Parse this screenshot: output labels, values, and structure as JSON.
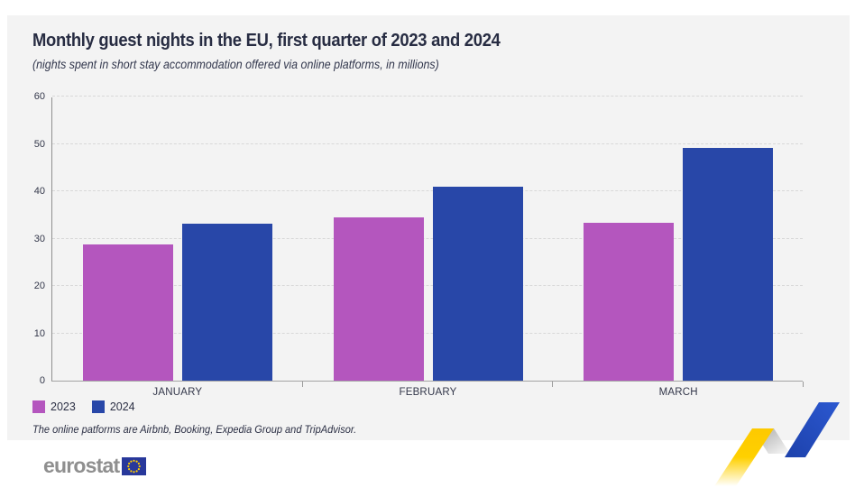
{
  "header": {
    "title": "Monthly guest nights in the EU, first quarter of 2023 and 2024",
    "subtitle": "(nights spent in short stay accommodation offered via online platforms, in millions)"
  },
  "chart_data": {
    "type": "bar",
    "categories": [
      "JANUARY",
      "FEBRUARY",
      "MARCH"
    ],
    "series": [
      {
        "name": "2023",
        "color": "#b456be",
        "values": [
          28.7,
          34.5,
          33.3
        ]
      },
      {
        "name": "2024",
        "color": "#2847a8",
        "values": [
          33.2,
          41.0,
          49.2
        ]
      }
    ],
    "title": "Monthly guest nights in the EU, first quarter of 2023 and 2024",
    "xlabel": "",
    "ylabel": "",
    "unit": "millions",
    "ylim": [
      0,
      60
    ],
    "y_ticks": [
      0,
      10,
      20,
      30,
      40,
      50,
      60
    ],
    "grid": "horizontal-dashed",
    "legend_position": "bottom-left"
  },
  "legend": {
    "items": [
      {
        "label": "2023",
        "color": "#b456be"
      },
      {
        "label": "2024",
        "color": "#2847a8"
      }
    ]
  },
  "footnote": "The online patforms are Airbnb, Booking, Expedia Group and TripAdvisor.",
  "footer": {
    "logo_text": "eurostat"
  },
  "colors": {
    "panel_bg": "#f3f3f3",
    "bar_2023": "#b456be",
    "bar_2024": "#2847a8",
    "ribbon_yellow": "#ffd000",
    "ribbon_blue": "#2552c7",
    "eu_flag_blue": "#28389b",
    "star_yellow": "#ffcc00"
  }
}
